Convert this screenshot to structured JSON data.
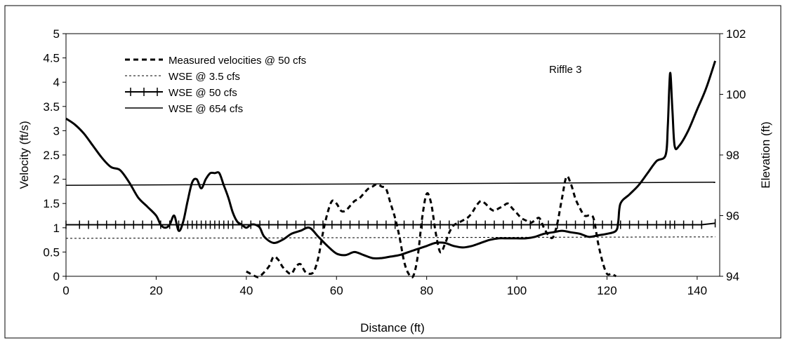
{
  "chart_data": {
    "type": "line",
    "annotation": "Riffle 3",
    "xlabel": "Distance (ft)",
    "ylabel_left": "Velocity (ft/s)",
    "ylabel_right": "Elevation (ft)",
    "xlim": [
      0,
      145
    ],
    "ylim_left": [
      0,
      5
    ],
    "ylim_right": [
      94,
      102
    ],
    "x_ticks": [
      "0",
      "20",
      "40",
      "60",
      "80",
      "100",
      "120",
      "140"
    ],
    "y_left_ticks": [
      "0",
      "0.5",
      "1",
      "1.5",
      "2",
      "2.5",
      "3",
      "3.5",
      "4",
      "4.5",
      "5"
    ],
    "y_right_ticks": [
      "94",
      "96",
      "98",
      "100",
      "102"
    ],
    "grid": false,
    "legend_position": "top-left",
    "series": [
      {
        "name": "Measured velocities @ 50 cfs",
        "axis": "left",
        "style": "dashed-thick",
        "x": [
          40,
          42,
          43,
          45,
          46,
          47,
          48,
          49,
          50,
          51,
          52,
          53,
          54,
          55,
          56,
          57,
          58,
          59,
          60,
          61,
          62,
          63,
          64,
          65,
          66,
          67,
          68,
          69,
          70,
          71,
          72,
          73,
          74,
          75,
          76,
          77,
          78,
          79,
          80,
          81,
          82,
          83,
          84,
          85,
          86,
          87,
          88,
          89,
          90,
          91,
          92,
          93,
          94,
          95,
          96,
          97,
          98,
          99,
          100,
          101,
          102,
          103,
          104,
          105,
          106,
          107,
          108,
          109,
          110,
          111,
          112,
          113,
          114,
          115,
          116,
          117,
          118,
          119,
          120,
          121,
          122
        ],
        "y": [
          0.1,
          0.0,
          -0.05,
          0.2,
          0.4,
          0.35,
          0.2,
          0.1,
          0.05,
          0.2,
          0.25,
          0.1,
          0.05,
          0.1,
          0.4,
          0.9,
          1.3,
          1.55,
          1.5,
          1.35,
          1.35,
          1.45,
          1.55,
          1.6,
          1.7,
          1.8,
          1.85,
          1.9,
          1.85,
          1.8,
          1.5,
          1.2,
          0.8,
          0.3,
          0.05,
          -0.05,
          0.4,
          1.2,
          1.7,
          1.5,
          0.9,
          0.5,
          0.65,
          0.9,
          1.05,
          1.1,
          1.15,
          1.2,
          1.3,
          1.45,
          1.55,
          1.5,
          1.4,
          1.35,
          1.4,
          1.45,
          1.5,
          1.4,
          1.3,
          1.2,
          1.15,
          1.1,
          1.15,
          1.2,
          1.0,
          0.85,
          0.8,
          1.1,
          1.6,
          2.05,
          1.9,
          1.6,
          1.4,
          1.25,
          1.25,
          1.2,
          0.7,
          0.3,
          0.05,
          0.05,
          0.0
        ]
      },
      {
        "name": "WSE @ 3.5 cfs",
        "axis": "right",
        "style": "dotted",
        "x": [
          0,
          144
        ],
        "y": [
          95.25,
          95.3
        ]
      },
      {
        "name": "WSE @ 50 cfs",
        "axis": "right",
        "style": "solid-with-ticks",
        "x": [
          0,
          3,
          5,
          7,
          9,
          11,
          13,
          15,
          17,
          19,
          21,
          23,
          25,
          27,
          28,
          29,
          30,
          31,
          32,
          33,
          34,
          35,
          36,
          37,
          39,
          41,
          43,
          45,
          47,
          49,
          51,
          53,
          55,
          57,
          59,
          61,
          63,
          65,
          67,
          69,
          71,
          73,
          75,
          77,
          79,
          81,
          83,
          85,
          87,
          89,
          91,
          93,
          95,
          97,
          99,
          101,
          103,
          105,
          107,
          109,
          111,
          113,
          115,
          117,
          119,
          121,
          123,
          125,
          127,
          129,
          131,
          133,
          134,
          135,
          137,
          139,
          141,
          144
        ],
        "y": [
          95.7,
          95.7,
          95.7,
          95.7,
          95.7,
          95.7,
          95.7,
          95.7,
          95.7,
          95.7,
          95.7,
          95.7,
          95.7,
          95.7,
          95.7,
          95.7,
          95.7,
          95.7,
          95.7,
          95.7,
          95.7,
          95.7,
          95.7,
          95.7,
          95.7,
          95.7,
          95.7,
          95.7,
          95.7,
          95.7,
          95.7,
          95.7,
          95.7,
          95.7,
          95.7,
          95.7,
          95.7,
          95.7,
          95.7,
          95.7,
          95.7,
          95.7,
          95.7,
          95.7,
          95.7,
          95.7,
          95.7,
          95.7,
          95.7,
          95.7,
          95.7,
          95.7,
          95.7,
          95.7,
          95.7,
          95.7,
          95.7,
          95.7,
          95.7,
          95.7,
          95.7,
          95.7,
          95.7,
          95.7,
          95.7,
          95.7,
          95.7,
          95.7,
          95.7,
          95.7,
          95.7,
          95.7,
          95.7,
          95.7,
          95.7,
          95.7,
          95.7,
          95.75
        ]
      },
      {
        "name": "WSE @ 654 cfs",
        "axis": "right",
        "style": "solid-thin",
        "x": [
          0,
          144
        ],
        "y": [
          97.0,
          97.1
        ]
      },
      {
        "name": "",
        "axis": "right",
        "style": "bed-profile-thick",
        "x": [
          0,
          2,
          4,
          6,
          8,
          10,
          12,
          14,
          16,
          18,
          20,
          21,
          22,
          23,
          24,
          25,
          26,
          27,
          28,
          29,
          30,
          31,
          32,
          33,
          34,
          35,
          36,
          37,
          38,
          39,
          40,
          41,
          42,
          43,
          44,
          46,
          48,
          50,
          52,
          54,
          56,
          58,
          60,
          62,
          64,
          66,
          68,
          70,
          72,
          74,
          76,
          78,
          80,
          82,
          84,
          86,
          88,
          90,
          92,
          94,
          96,
          98,
          100,
          102,
          104,
          106,
          108,
          110,
          112,
          114,
          116,
          118,
          120,
          122,
          122.5,
          123,
          125,
          127,
          129,
          131,
          133,
          133.5,
          134,
          134.5,
          135,
          136,
          138,
          140,
          142,
          144
        ],
        "y": [
          99.2,
          99.0,
          98.7,
          98.3,
          97.9,
          97.6,
          97.5,
          97.1,
          96.6,
          96.3,
          96.0,
          95.7,
          95.6,
          95.7,
          96.0,
          95.5,
          95.8,
          96.5,
          97.1,
          97.2,
          96.9,
          97.2,
          97.4,
          97.4,
          97.4,
          97.0,
          96.6,
          96.1,
          95.8,
          95.7,
          95.6,
          95.7,
          95.7,
          95.6,
          95.3,
          95.1,
          95.2,
          95.4,
          95.5,
          95.6,
          95.3,
          95.0,
          94.75,
          94.7,
          94.8,
          94.7,
          94.6,
          94.6,
          94.65,
          94.7,
          94.8,
          94.9,
          95.0,
          95.1,
          95.1,
          95.0,
          94.95,
          95.0,
          95.1,
          95.2,
          95.25,
          95.25,
          95.25,
          95.25,
          95.3,
          95.4,
          95.45,
          95.5,
          95.45,
          95.4,
          95.3,
          95.35,
          95.4,
          95.5,
          95.8,
          96.4,
          96.7,
          97.0,
          97.4,
          97.8,
          98.0,
          99.0,
          100.7,
          99.5,
          98.3,
          98.3,
          98.8,
          99.5,
          100.2,
          101.1
        ]
      }
    ]
  }
}
